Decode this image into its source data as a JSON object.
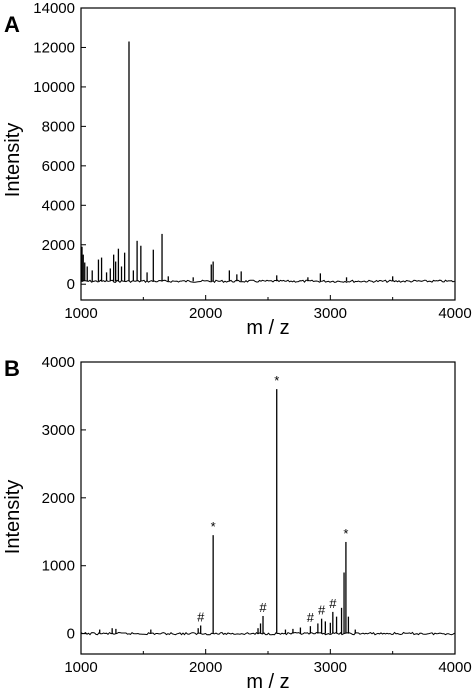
{
  "chart_data": [
    {
      "type": "line",
      "panel_label": "A",
      "xlabel": "m / z",
      "ylabel": "Intensity",
      "xlim": [
        1000,
        4000
      ],
      "ylim": [
        -800,
        14000
      ],
      "grid": false,
      "x_ticks": [
        1000,
        2000,
        3000,
        4000
      ],
      "x_tick_labels": [
        "1000",
        "2000",
        "3000",
        "4000"
      ],
      "y_ticks": [
        0,
        2000,
        4000,
        6000,
        8000,
        10000,
        12000,
        14000
      ],
      "y_tick_labels": [
        "0",
        "2000",
        "4000",
        "6000",
        "8000",
        "10000",
        "12000",
        "14000"
      ],
      "baseline": 150,
      "peaks": [
        {
          "x": 1008,
          "y": 1900
        },
        {
          "x": 1018,
          "y": 1500
        },
        {
          "x": 1030,
          "y": 1100
        },
        {
          "x": 1050,
          "y": 900
        },
        {
          "x": 1090,
          "y": 700
        },
        {
          "x": 1140,
          "y": 1250
        },
        {
          "x": 1165,
          "y": 1350
        },
        {
          "x": 1205,
          "y": 600
        },
        {
          "x": 1235,
          "y": 800
        },
        {
          "x": 1262,
          "y": 1500
        },
        {
          "x": 1278,
          "y": 1150
        },
        {
          "x": 1300,
          "y": 1800
        },
        {
          "x": 1325,
          "y": 900
        },
        {
          "x": 1350,
          "y": 1600
        },
        {
          "x": 1385,
          "y": 12300
        },
        {
          "x": 1420,
          "y": 700
        },
        {
          "x": 1450,
          "y": 2200
        },
        {
          "x": 1480,
          "y": 1950
        },
        {
          "x": 1530,
          "y": 600
        },
        {
          "x": 1580,
          "y": 1750
        },
        {
          "x": 1650,
          "y": 2550
        },
        {
          "x": 1700,
          "y": 400
        },
        {
          "x": 1900,
          "y": 350
        },
        {
          "x": 2045,
          "y": 1000
        },
        {
          "x": 2060,
          "y": 1150
        },
        {
          "x": 2190,
          "y": 700
        },
        {
          "x": 2250,
          "y": 500
        },
        {
          "x": 2285,
          "y": 650
        },
        {
          "x": 2570,
          "y": 450
        },
        {
          "x": 2820,
          "y": 350
        },
        {
          "x": 2920,
          "y": 550
        },
        {
          "x": 3130,
          "y": 350
        },
        {
          "x": 3500,
          "y": 400
        }
      ],
      "annotations": []
    },
    {
      "type": "line",
      "panel_label": "B",
      "xlabel": "m / z",
      "ylabel": "Intensity",
      "xlim": [
        1000,
        4000
      ],
      "ylim": [
        -300,
        4000
      ],
      "grid": false,
      "x_ticks": [
        1000,
        2000,
        3000,
        4000
      ],
      "x_tick_labels": [
        "1000",
        "2000",
        "3000",
        "4000"
      ],
      "y_ticks": [
        0,
        1000,
        2000,
        3000,
        4000
      ],
      "y_tick_labels": [
        "0",
        "1000",
        "2000",
        "3000",
        "4000"
      ],
      "baseline": 0,
      "peaks": [
        {
          "x": 1150,
          "y": 60
        },
        {
          "x": 1250,
          "y": 80
        },
        {
          "x": 1280,
          "y": 70
        },
        {
          "x": 1560,
          "y": 60
        },
        {
          "x": 1940,
          "y": 80
        },
        {
          "x": 1960,
          "y": 120
        },
        {
          "x": 2060,
          "y": 1450
        },
        {
          "x": 2420,
          "y": 80
        },
        {
          "x": 2440,
          "y": 150
        },
        {
          "x": 2460,
          "y": 260
        },
        {
          "x": 2570,
          "y": 3600
        },
        {
          "x": 2640,
          "y": 60
        },
        {
          "x": 2700,
          "y": 70
        },
        {
          "x": 2760,
          "y": 90
        },
        {
          "x": 2840,
          "y": 110
        },
        {
          "x": 2900,
          "y": 150
        },
        {
          "x": 2930,
          "y": 220
        },
        {
          "x": 2960,
          "y": 180
        },
        {
          "x": 3000,
          "y": 160
        },
        {
          "x": 3020,
          "y": 320
        },
        {
          "x": 3050,
          "y": 250
        },
        {
          "x": 3090,
          "y": 380
        },
        {
          "x": 3110,
          "y": 900
        },
        {
          "x": 3125,
          "y": 1350
        },
        {
          "x": 3145,
          "y": 250
        },
        {
          "x": 3200,
          "y": 60
        }
      ],
      "annotations": [
        {
          "x": 2060,
          "y": 1450,
          "text": "*"
        },
        {
          "x": 2570,
          "y": 3600,
          "text": "*"
        },
        {
          "x": 3125,
          "y": 1350,
          "text": "*"
        },
        {
          "x": 1960,
          "y": 120,
          "text": "#"
        },
        {
          "x": 2460,
          "y": 260,
          "text": "#"
        },
        {
          "x": 2840,
          "y": 110,
          "text": "#"
        },
        {
          "x": 2930,
          "y": 220,
          "text": "#"
        },
        {
          "x": 3020,
          "y": 320,
          "text": "#"
        }
      ]
    }
  ]
}
